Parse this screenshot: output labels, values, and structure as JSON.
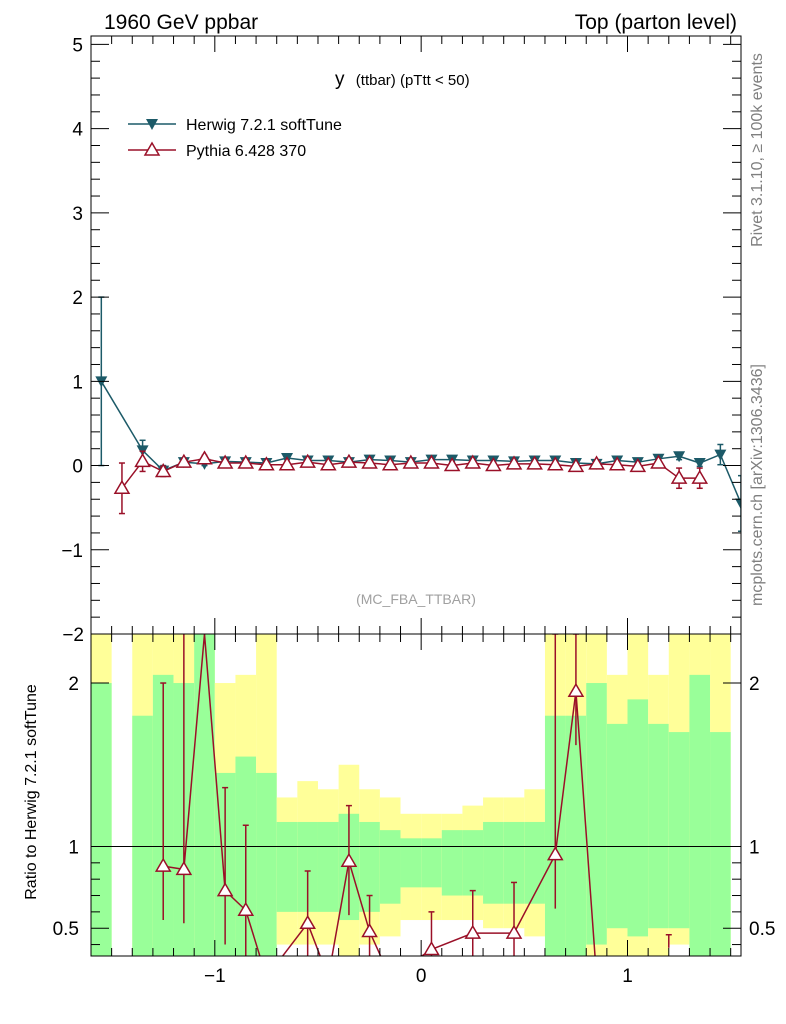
{
  "header": {
    "left": "1960 GeV ppbar",
    "right": "Top (parton level)"
  },
  "side_labels": {
    "rivet": "Rivet 3.1.10, ≥ 100k events",
    "ref": "mcplots.cern.ch [arXiv:1306.3436]"
  },
  "colors": {
    "herwig": "#1c5a68",
    "pythia": "#9a1028",
    "band_inner": "#99ff99",
    "band_outer": "#ffff99",
    "frame": "#000000"
  },
  "chart_data": [
    {
      "type": "line",
      "name": "main",
      "title_main": "y",
      "title_sub": "(ttbar) (pTtt < 50)",
      "watermark": "(MC_FBA_TTBAR)",
      "xlim": [
        -1.6,
        1.55
      ],
      "ylim": [
        -2,
        5.1
      ],
      "yticks": [
        -1,
        0,
        1,
        2,
        3,
        4,
        5
      ],
      "ytick_labels": [
        "−1",
        "0",
        "1",
        "2",
        "3",
        "4",
        "5"
      ],
      "ylabel_clipped": "−2",
      "legend": [
        {
          "name": "Herwig 7.2.1 softTune",
          "marker": "triangle-down-filled"
        },
        {
          "name": "Pythia 6.428 370",
          "marker": "triangle-up-open"
        }
      ],
      "series": [
        {
          "name": "Herwig 7.2.1 softTune",
          "points": [
            [
              -1.55,
              1.0,
              1.0
            ],
            [
              -1.35,
              0.18,
              0.12
            ],
            [
              -1.25,
              -0.06,
              0.06
            ],
            [
              -1.15,
              0.04,
              0.04
            ],
            [
              -1.05,
              0.02,
              0.02
            ],
            [
              -0.95,
              0.05,
              0.02
            ],
            [
              -0.85,
              0.04,
              0.02
            ],
            [
              -0.75,
              0.03,
              0.02
            ],
            [
              -0.65,
              0.09,
              0.02
            ],
            [
              -0.55,
              0.06,
              0.02
            ],
            [
              -0.45,
              0.06,
              0.02
            ],
            [
              -0.35,
              0.04,
              0.02
            ],
            [
              -0.25,
              0.07,
              0.02
            ],
            [
              -0.15,
              0.06,
              0.02
            ],
            [
              -0.05,
              0.04,
              0.02
            ],
            [
              0.05,
              0.07,
              0.02
            ],
            [
              0.15,
              0.07,
              0.02
            ],
            [
              0.25,
              0.06,
              0.02
            ],
            [
              0.35,
              0.06,
              0.02
            ],
            [
              0.45,
              0.05,
              0.02
            ],
            [
              0.55,
              0.06,
              0.02
            ],
            [
              0.65,
              0.06,
              0.02
            ],
            [
              0.75,
              0.03,
              0.02
            ],
            [
              0.85,
              0.02,
              0.02
            ],
            [
              0.95,
              0.06,
              0.02
            ],
            [
              1.05,
              0.04,
              0.02
            ],
            [
              1.15,
              0.08,
              0.03
            ],
            [
              1.25,
              0.11,
              0.04
            ],
            [
              1.35,
              0.03,
              0.04
            ],
            [
              1.45,
              0.13,
              0.12
            ],
            [
              1.55,
              -0.45,
              0.33
            ]
          ]
        },
        {
          "name": "Pythia 6.428 370",
          "points": [
            [
              -1.45,
              -0.27,
              0.3
            ],
            [
              -1.35,
              0.05,
              0.12
            ],
            [
              -1.25,
              -0.07,
              0.06
            ],
            [
              -1.15,
              0.04,
              0.04
            ],
            [
              -1.05,
              0.08,
              0.04
            ],
            [
              -0.95,
              0.03,
              0.02
            ],
            [
              -0.85,
              0.03,
              0.02
            ],
            [
              -0.75,
              0.01,
              0.02
            ],
            [
              -0.65,
              0.01,
              0.02
            ],
            [
              -0.55,
              0.04,
              0.02
            ],
            [
              -0.45,
              0.01,
              0.02
            ],
            [
              -0.35,
              0.04,
              0.02
            ],
            [
              -0.25,
              0.03,
              0.02
            ],
            [
              -0.15,
              0.01,
              0.02
            ],
            [
              -0.05,
              0.03,
              0.02
            ],
            [
              0.05,
              0.03,
              0.02
            ],
            [
              0.15,
              0.0,
              0.02
            ],
            [
              0.25,
              0.03,
              0.02
            ],
            [
              0.35,
              0.0,
              0.02
            ],
            [
              0.45,
              0.02,
              0.02
            ],
            [
              0.55,
              0.02,
              0.02
            ],
            [
              0.65,
              0.01,
              0.02
            ],
            [
              0.75,
              -0.01,
              0.02
            ],
            [
              0.85,
              0.02,
              0.02
            ],
            [
              0.95,
              0.01,
              0.02
            ],
            [
              1.05,
              -0.01,
              0.03
            ],
            [
              1.15,
              0.03,
              0.04
            ],
            [
              1.25,
              -0.15,
              0.12
            ],
            [
              1.35,
              -0.15,
              0.12
            ]
          ]
        }
      ]
    },
    {
      "type": "area",
      "name": "ratio",
      "ylabel": "Ratio to Herwig 7.2.1 softTune",
      "xlim": [
        -1.6,
        1.55
      ],
      "ylim": [
        0.33,
        2.3
      ],
      "xticks": [
        -1,
        0,
        1
      ],
      "xtick_labels": [
        "−1",
        "0",
        "1"
      ],
      "yticks": [
        0.5,
        1,
        2
      ],
      "ytick_labels": [
        "0.5",
        "1",
        "2"
      ],
      "reference_line": 1,
      "bands": {
        "bins": [
          [
            -1.6,
            -1.5,
            2.0,
            0.33,
            2.3,
            0.33
          ],
          [
            -1.5,
            -1.4,
            null,
            null,
            null,
            null
          ],
          [
            -1.4,
            -1.3,
            1.8,
            0.33,
            2.3,
            0.33
          ],
          [
            -1.3,
            -1.2,
            2.05,
            0.33,
            2.3,
            0.33
          ],
          [
            -1.2,
            -1.1,
            2.0,
            0.33,
            2.3,
            0.33
          ],
          [
            -1.1,
            -1.0,
            2.3,
            0.33,
            2.3,
            0.33
          ],
          [
            -1.0,
            -0.9,
            1.45,
            0.33,
            2.0,
            0.33
          ],
          [
            -0.9,
            -0.8,
            1.55,
            0.33,
            2.05,
            0.33
          ],
          [
            -0.8,
            -0.7,
            1.45,
            0.33,
            2.3,
            0.33
          ],
          [
            -0.7,
            -0.6,
            1.15,
            0.6,
            1.3,
            0.4
          ],
          [
            -0.6,
            -0.5,
            1.15,
            0.6,
            1.4,
            0.4
          ],
          [
            -0.5,
            -0.4,
            1.15,
            0.6,
            1.35,
            0.4
          ],
          [
            -0.4,
            -0.3,
            1.2,
            0.55,
            1.5,
            0.33
          ],
          [
            -0.3,
            -0.2,
            1.15,
            0.6,
            1.35,
            0.4
          ],
          [
            -0.2,
            -0.1,
            1.1,
            0.65,
            1.3,
            0.45
          ],
          [
            -0.1,
            0.0,
            1.05,
            0.75,
            1.2,
            0.55
          ],
          [
            0.0,
            0.1,
            1.05,
            0.75,
            1.2,
            0.55
          ],
          [
            0.1,
            0.2,
            1.1,
            0.7,
            1.2,
            0.55
          ],
          [
            0.2,
            0.3,
            1.1,
            0.7,
            1.25,
            0.55
          ],
          [
            0.3,
            0.4,
            1.15,
            0.65,
            1.3,
            0.5
          ],
          [
            0.4,
            0.5,
            1.15,
            0.65,
            1.3,
            0.5
          ],
          [
            0.5,
            0.6,
            1.15,
            0.65,
            1.35,
            0.45
          ],
          [
            0.6,
            0.7,
            1.8,
            0.33,
            2.3,
            0.33
          ],
          [
            0.7,
            0.8,
            1.8,
            0.33,
            2.3,
            0.33
          ],
          [
            0.8,
            0.9,
            2.0,
            0.4,
            2.3,
            0.33
          ],
          [
            0.9,
            1.0,
            1.75,
            0.5,
            2.05,
            0.33
          ],
          [
            1.0,
            1.1,
            1.9,
            0.45,
            2.3,
            0.33
          ],
          [
            1.1,
            1.2,
            1.75,
            0.5,
            2.05,
            0.33
          ],
          [
            1.2,
            1.3,
            1.7,
            0.5,
            2.3,
            0.4
          ],
          [
            1.3,
            1.4,
            2.05,
            0.33,
            2.3,
            0.33
          ],
          [
            1.4,
            1.5,
            1.7,
            0.33,
            2.3,
            0.33
          ]
        ]
      },
      "series": [
        {
          "name": "Pythia 6.428 370 / Herwig 7.2.1 softTune",
          "points": [
            [
              -1.25,
              0.88,
              1.12,
              0.33
            ],
            [
              -1.15,
              0.86,
              1.5,
              0.33
            ],
            [
              -1.05,
              2.3,
              0,
              0
            ],
            [
              -0.95,
              0.73,
              0.63,
              0.33
            ],
            [
              -0.85,
              0.61,
              0.52,
              0.33
            ],
            [
              -0.75,
              0.2,
              0,
              0
            ],
            [
              -0.55,
              0.53,
              0.32,
              0.33
            ],
            [
              -0.45,
              0.2,
              0,
              0
            ],
            [
              -0.35,
              0.91,
              0.34,
              0.33
            ],
            [
              -0.25,
              0.48,
              0.22,
              0.33
            ],
            [
              -0.15,
              0.2,
              0,
              0
            ],
            [
              0.05,
              0.37,
              0.23,
              0.33
            ],
            [
              0.25,
              0.47,
              0.26,
              0.33
            ],
            [
              0.45,
              0.47,
              0.31,
              0.33
            ],
            [
              0.65,
              0.95,
              1.35,
              0.33
            ],
            [
              0.75,
              1.95,
              0.35,
              0.33
            ],
            [
              0.85,
              0.2,
              0,
              0
            ]
          ]
        }
      ]
    }
  ]
}
